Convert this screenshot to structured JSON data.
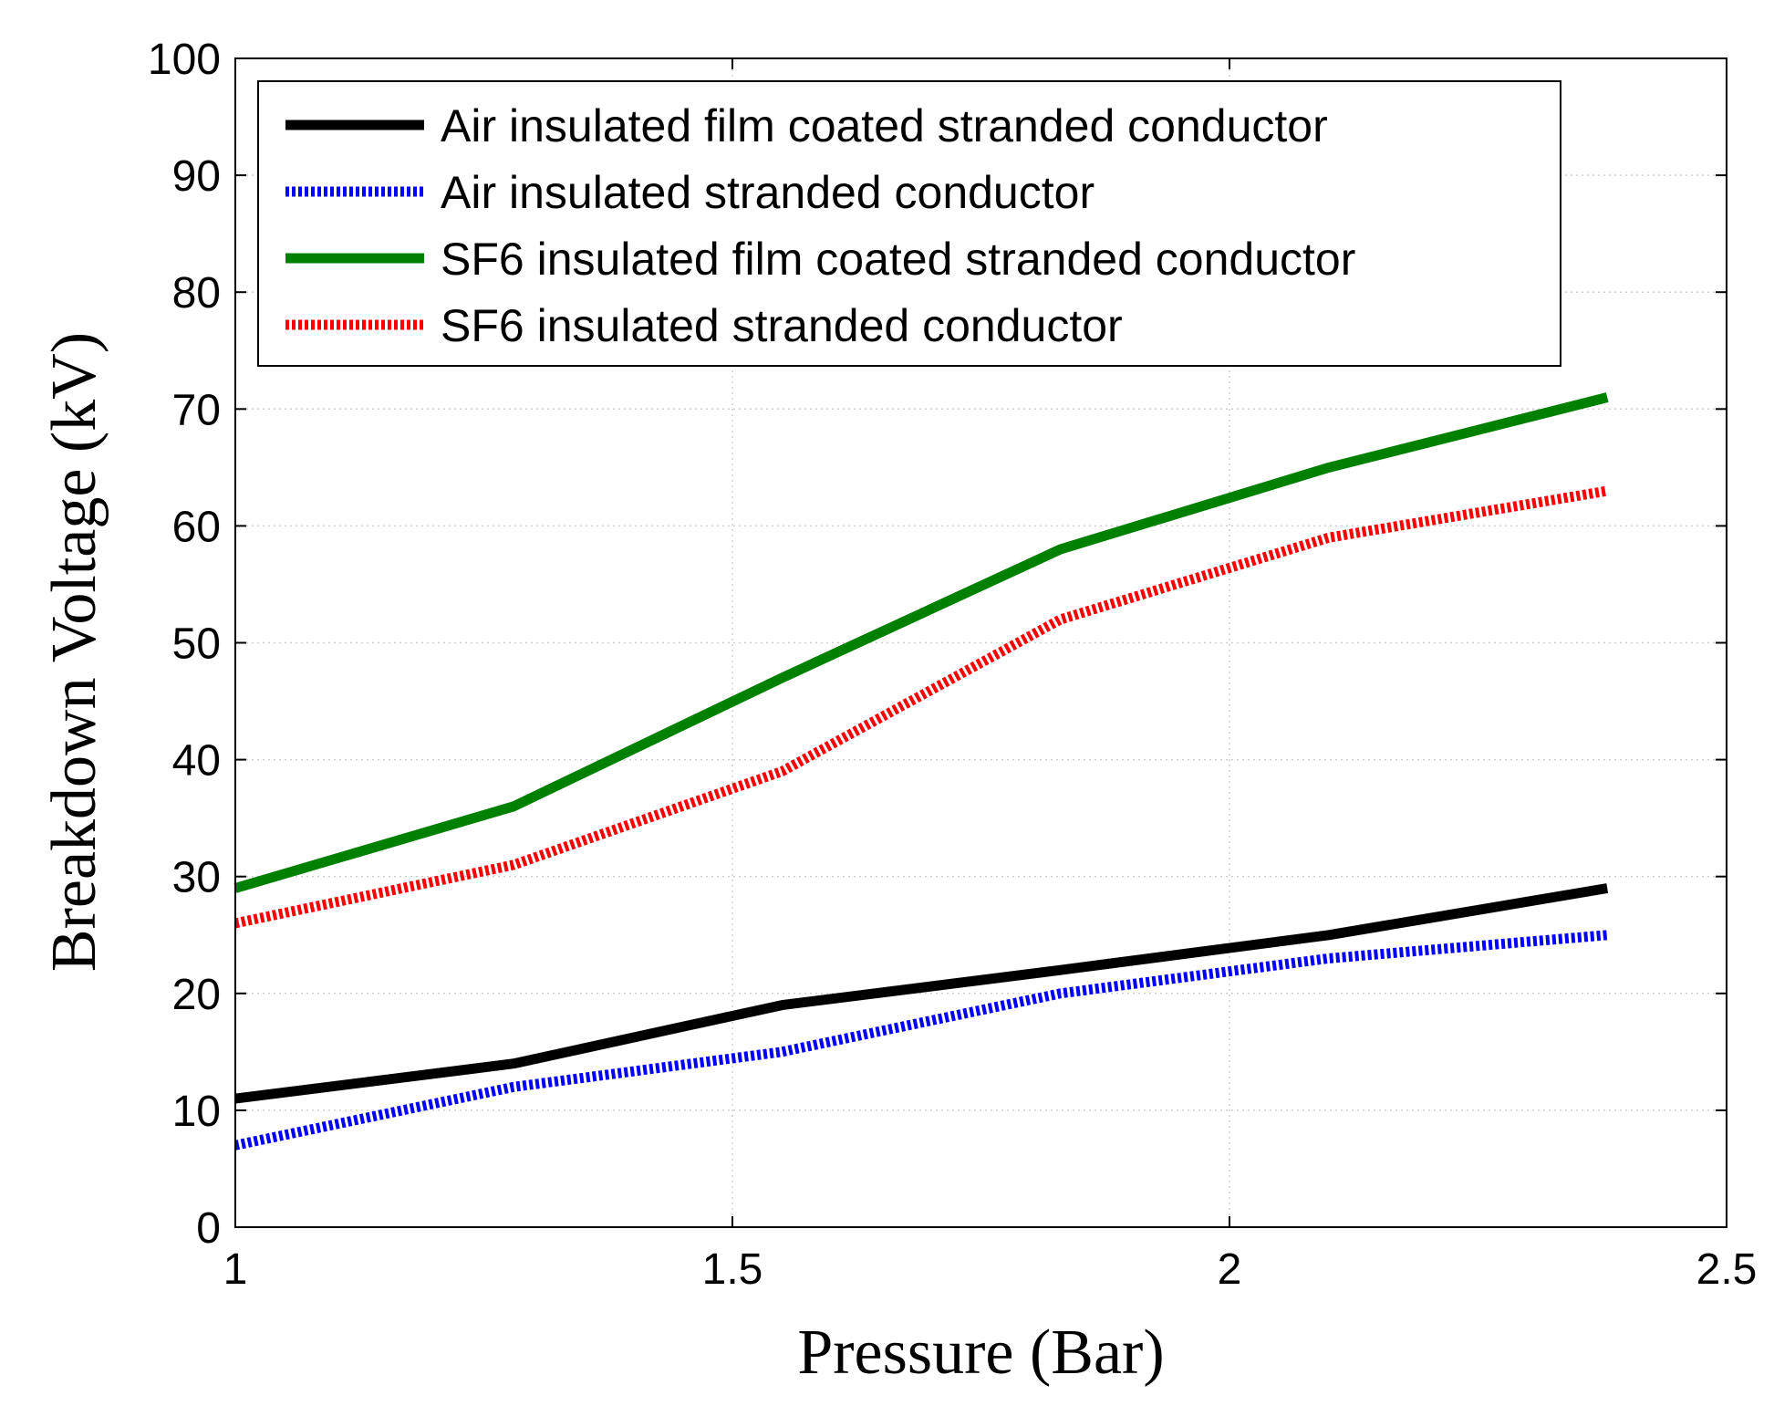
{
  "chart_data": {
    "type": "line",
    "title": "",
    "xlabel": "Pressure (Bar)",
    "ylabel": "Breakdown Voltage (kV)",
    "xlim": [
      1,
      2.5
    ],
    "ylim": [
      0,
      100
    ],
    "xticks": [
      1,
      1.5,
      2,
      2.5
    ],
    "xtick_labels": [
      "1",
      "1.5",
      "2",
      "2.5"
    ],
    "yticks": [
      0,
      10,
      20,
      30,
      40,
      50,
      60,
      70,
      80,
      90,
      100
    ],
    "ytick_labels": [
      "0",
      "10",
      "20",
      "30",
      "40",
      "50",
      "60",
      "70",
      "80",
      "90",
      "100"
    ],
    "grid": true,
    "legend_position": "top-left",
    "series": [
      {
        "name": "Air insulated film coated stranded conductor",
        "color": "#000000",
        "style": "solid",
        "x": [
          1.0,
          1.28,
          1.55,
          1.83,
          2.1,
          2.38
        ],
        "y": [
          11,
          14,
          19,
          22,
          25,
          29
        ]
      },
      {
        "name": "Air insulated stranded conductor",
        "color": "#0000ff",
        "style": "dotted",
        "x": [
          1.0,
          1.28,
          1.55,
          1.83,
          2.1,
          2.38
        ],
        "y": [
          7,
          12,
          15,
          20,
          23,
          25
        ]
      },
      {
        "name": "SF6 insulated film coated stranded conductor",
        "color": "#008000",
        "style": "solid",
        "x": [
          1.0,
          1.28,
          1.55,
          1.83,
          2.1,
          2.38
        ],
        "y": [
          29,
          36,
          47,
          58,
          65,
          71
        ]
      },
      {
        "name": "SF6 insulated stranded conductor",
        "color": "#ff0000",
        "style": "dotted",
        "x": [
          1.0,
          1.28,
          1.55,
          1.83,
          2.1,
          2.38
        ],
        "y": [
          26,
          31,
          39,
          52,
          59,
          63
        ]
      }
    ]
  }
}
